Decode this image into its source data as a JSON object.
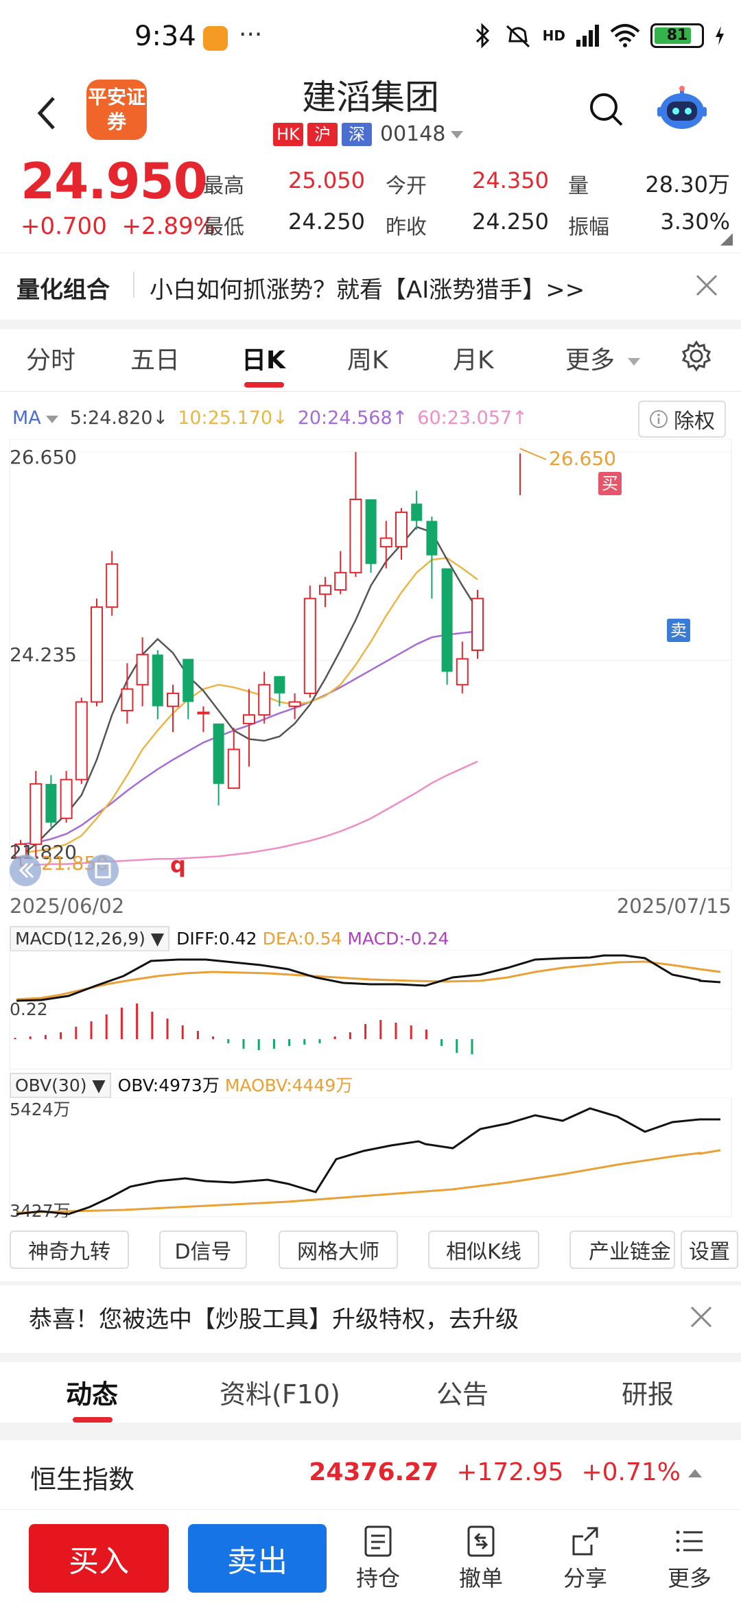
{
  "status_bar": {
    "time": "9:34",
    "dots": "···",
    "network": "HD",
    "battery": "81"
  },
  "header": {
    "broker_logo": "平安证券",
    "stock_name": "建滔集团",
    "tags": [
      "HK",
      "沪",
      "深"
    ],
    "stock_code": "00148"
  },
  "quote": {
    "price": "24.950",
    "change": "+0.700",
    "change_pct": "+2.89%",
    "high_label": "最高",
    "high": "25.050",
    "open_label": "今开",
    "open": "24.350",
    "volume_label": "量",
    "volume": "28.30万",
    "low_label": "最低",
    "low": "24.250",
    "prev_close_label": "昨收",
    "prev_close": "24.250",
    "amplitude_label": "振幅",
    "amplitude": "3.30%"
  },
  "quant_banner": {
    "title": "量化组合",
    "text": "小白如何抓涨势？就看【AI涨势猎手】>>"
  },
  "period_tabs": [
    "分时",
    "五日",
    "日K",
    "周K",
    "月K",
    "更多"
  ],
  "ma": {
    "label": "MA",
    "ma5": "5:24.820↓",
    "ma10": "10:25.170↓",
    "ma20": "20:24.568↑",
    "ma60": "60:23.057↑",
    "fuquan": "除权"
  },
  "kline": {
    "y_top": "26.650",
    "y_mid": "24.235",
    "y_bottom": "21.820",
    "max_label": "26.650",
    "min_label": "21.850",
    "buy_mark": "买",
    "sell_mark": "卖",
    "q_mark": "q",
    "date_start": "2025/06/02",
    "date_end": "2025/07/15"
  },
  "macd": {
    "name": "MACD(12,26,9)",
    "diff": "DIFF:0.42",
    "dea": "DEA:0.54",
    "macd": "MACD:-0.24",
    "axis": "0.22"
  },
  "obv": {
    "name": "OBV(30)",
    "obv": "OBV:4973万",
    "maobv": "MAOBV:4449万",
    "axis_top": "5424万",
    "axis_bottom": "3427万"
  },
  "tools": [
    "神奇九转",
    "D信号",
    "网格大师",
    "相似K线",
    "产业链金",
    "设置"
  ],
  "upgrade_banner": {
    "text": "恭喜！您被选中【炒股工具】升级特权，去升级"
  },
  "content_tabs": [
    "动态",
    "资料(F10)",
    "公告",
    "研报"
  ],
  "index_bar": {
    "name": "恒生指数",
    "value": "24376.27",
    "change": "+172.95",
    "change_pct": "+0.71%"
  },
  "bottom_bar": {
    "buy": "买入",
    "sell": "卖出",
    "nav": [
      "持仓",
      "撤单",
      "分享",
      "更多"
    ]
  },
  "colors": {
    "up": "#e5262e",
    "down": "#13a86a",
    "ma5": "#555555",
    "ma10": "#e9b646",
    "ma20": "#a66ad6",
    "ma60": "#ee8ec4",
    "buy": "#e5161e",
    "sell": "#1774e6"
  },
  "chart_data": {
    "type": "candlestick",
    "x_range": [
      "2025/06/02",
      "2025/07/15"
    ],
    "y_ticks": [
      26.65,
      24.235,
      21.82
    ],
    "candles": [
      {
        "o": 21.95,
        "c": 22.1,
        "h": 22.15,
        "l": 21.85
      },
      {
        "o": 22.1,
        "c": 22.8,
        "h": 22.95,
        "l": 21.95
      },
      {
        "o": 22.8,
        "c": 22.35,
        "h": 22.9,
        "l": 22.3
      },
      {
        "o": 22.4,
        "c": 22.85,
        "h": 22.95,
        "l": 22.35
      },
      {
        "o": 22.85,
        "c": 23.75,
        "h": 23.8,
        "l": 22.8
      },
      {
        "o": 23.75,
        "c": 24.85,
        "h": 24.95,
        "l": 23.7
      },
      {
        "o": 24.85,
        "c": 25.35,
        "h": 25.5,
        "l": 24.75
      },
      {
        "o": 23.65,
        "c": 23.9,
        "h": 24.2,
        "l": 23.5
      },
      {
        "o": 23.95,
        "c": 24.3,
        "h": 24.5,
        "l": 23.7
      },
      {
        "o": 24.3,
        "c": 23.7,
        "h": 24.35,
        "l": 23.55
      },
      {
        "o": 23.7,
        "c": 23.85,
        "h": 23.95,
        "l": 23.4
      },
      {
        "o": 24.25,
        "c": 23.75,
        "h": 24.25,
        "l": 23.55
      },
      {
        "o": 23.63,
        "c": 23.63,
        "h": 23.7,
        "l": 23.4
      },
      {
        "o": 23.5,
        "c": 22.8,
        "h": 23.5,
        "l": 22.55
      },
      {
        "o": 22.75,
        "c": 23.2,
        "h": 23.45,
        "l": 22.75
      },
      {
        "o": 23.5,
        "c": 23.6,
        "h": 23.9,
        "l": 23.0
      },
      {
        "o": 23.6,
        "c": 23.95,
        "h": 24.1,
        "l": 23.5
      },
      {
        "o": 24.05,
        "c": 23.85,
        "h": 24.05,
        "l": 23.7
      },
      {
        "o": 23.7,
        "c": 23.75,
        "h": 23.85,
        "l": 23.55
      },
      {
        "o": 23.85,
        "c": 24.95,
        "h": 25.1,
        "l": 23.8
      },
      {
        "o": 25.0,
        "c": 25.1,
        "h": 25.2,
        "l": 24.85
      },
      {
        "o": 25.05,
        "c": 25.25,
        "h": 25.5,
        "l": 25.0
      },
      {
        "o": 25.25,
        "c": 26.1,
        "h": 26.65,
        "l": 25.2
      },
      {
        "o": 26.1,
        "c": 25.35,
        "h": 26.1,
        "l": 25.25
      },
      {
        "o": 25.55,
        "c": 25.65,
        "h": 25.85,
        "l": 25.3
      },
      {
        "o": 25.55,
        "c": 25.95,
        "h": 26.0,
        "l": 25.4
      },
      {
        "o": 26.05,
        "c": 25.85,
        "h": 26.2,
        "l": 25.75
      },
      {
        "o": 25.85,
        "c": 25.45,
        "h": 25.9,
        "l": 24.95
      },
      {
        "o": 25.3,
        "c": 24.1,
        "h": 25.3,
        "l": 23.95
      },
      {
        "o": 23.95,
        "c": 24.25,
        "h": 24.45,
        "l": 23.85
      },
      {
        "o": 24.35,
        "c": 24.95,
        "h": 25.05,
        "l": 24.25
      }
    ],
    "ma5": [
      21.97,
      22.1,
      22.28,
      22.45,
      22.67,
      23.08,
      23.6,
      24.0,
      24.3,
      24.48,
      24.32,
      24.05,
      23.88,
      23.65,
      23.42,
      23.32,
      23.3,
      23.35,
      23.5,
      23.72,
      24.02,
      24.35,
      24.7,
      25.1,
      25.38,
      25.58,
      25.78,
      25.72,
      25.4,
      25.1,
      24.82
    ],
    "ma10": [
      22.0,
      22.02,
      22.05,
      22.1,
      22.2,
      22.4,
      22.62,
      22.9,
      23.2,
      23.42,
      23.62,
      23.78,
      23.9,
      23.95,
      23.92,
      23.87,
      23.82,
      23.75,
      23.72,
      23.75,
      23.82,
      23.95,
      24.18,
      24.45,
      24.75,
      25.02,
      25.25,
      25.4,
      25.42,
      25.3,
      25.17
    ],
    "ma20": [
      22.1,
      22.12,
      22.16,
      22.22,
      22.32,
      22.45,
      22.58,
      22.72,
      22.85,
      22.97,
      23.08,
      23.18,
      23.28,
      23.35,
      23.42,
      23.48,
      23.55,
      23.62,
      23.68,
      23.75,
      23.83,
      23.92,
      24.02,
      24.12,
      24.22,
      24.32,
      24.42,
      24.5,
      24.53,
      24.55,
      24.57
    ],
    "ma60": [
      21.85,
      21.86,
      21.87,
      21.87,
      21.88,
      21.89,
      21.9,
      21.91,
      21.92,
      21.93,
      21.93,
      21.94,
      21.95,
      21.96,
      21.98,
      22.0,
      22.03,
      22.06,
      22.1,
      22.14,
      22.19,
      22.25,
      22.32,
      22.4,
      22.5,
      22.6,
      22.7,
      22.81,
      22.9,
      22.98,
      23.06
    ],
    "markers": [
      {
        "index": 26,
        "label": "买",
        "position": "above"
      },
      {
        "index": 30,
        "label": "卖",
        "position": "left"
      }
    ]
  }
}
